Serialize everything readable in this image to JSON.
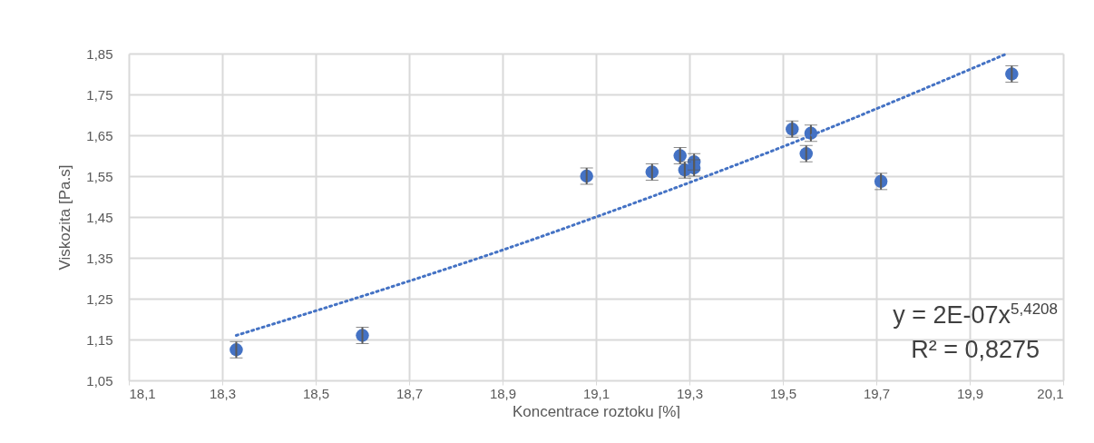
{
  "chart_data": {
    "type": "scatter",
    "xlabel": "Koncentrace roztoku [%]",
    "ylabel": "Viskozita [Pa.s]",
    "xlim": [
      18.1,
      20.1
    ],
    "xticks": [
      {
        "value": 18.1,
        "label": "18,1"
      },
      {
        "value": 18.3,
        "label": "18,3"
      },
      {
        "value": 18.5,
        "label": "18,5"
      },
      {
        "value": 18.7,
        "label": "18,7"
      },
      {
        "value": 18.9,
        "label": "18,9"
      },
      {
        "value": 19.1,
        "label": "19,1"
      },
      {
        "value": 19.3,
        "label": "19,3"
      },
      {
        "value": 19.5,
        "label": "19,5"
      },
      {
        "value": 19.7,
        "label": "19,7"
      },
      {
        "value": 19.9,
        "label": "19,9"
      },
      {
        "value": 20.1,
        "label": "20,1"
      }
    ],
    "ylim": [
      1.05,
      1.85
    ],
    "yticks": [
      {
        "value": 1.05,
        "label": "1,05"
      },
      {
        "value": 1.15,
        "label": "1,15"
      },
      {
        "value": 1.25,
        "label": "1,25"
      },
      {
        "value": 1.35,
        "label": "1,35"
      },
      {
        "value": 1.45,
        "label": "1,45"
      },
      {
        "value": 1.55,
        "label": "1,55"
      },
      {
        "value": 1.65,
        "label": "1,65"
      },
      {
        "value": 1.75,
        "label": "1,75"
      },
      {
        "value": 1.85,
        "label": "1,85"
      }
    ],
    "grid": true,
    "series": [
      {
        "color": "#4472c4",
        "marker": "circle",
        "x": [
          18.33,
          18.6,
          19.08,
          19.22,
          19.28,
          19.29,
          19.31,
          19.31,
          19.52,
          19.56,
          19.55,
          19.71,
          19.99
        ],
        "values": [
          1.125,
          1.16,
          1.55,
          1.56,
          1.6,
          1.565,
          1.585,
          1.57,
          1.665,
          1.655,
          1.605,
          1.537,
          1.8
        ],
        "errors": [
          0.02,
          0.02,
          0.02,
          0.02,
          0.02,
          0.02,
          0.02,
          0.02,
          0.02,
          0.02,
          0.02,
          0.02,
          0.02
        ]
      },
      {
        "type": "line",
        "color": "#4472c4",
        "line_style": "dotted",
        "marker": "none",
        "x": [
          18.33,
          18.7,
          18.9,
          19.1,
          19.5,
          19.98
        ],
        "values": [
          1.16,
          1.293,
          1.369,
          1.45,
          1.622,
          1.85
        ]
      }
    ],
    "annotations": [
      "y = 2E-07x$^{5,4208}$",
      "R² = 0,8275"
    ]
  }
}
